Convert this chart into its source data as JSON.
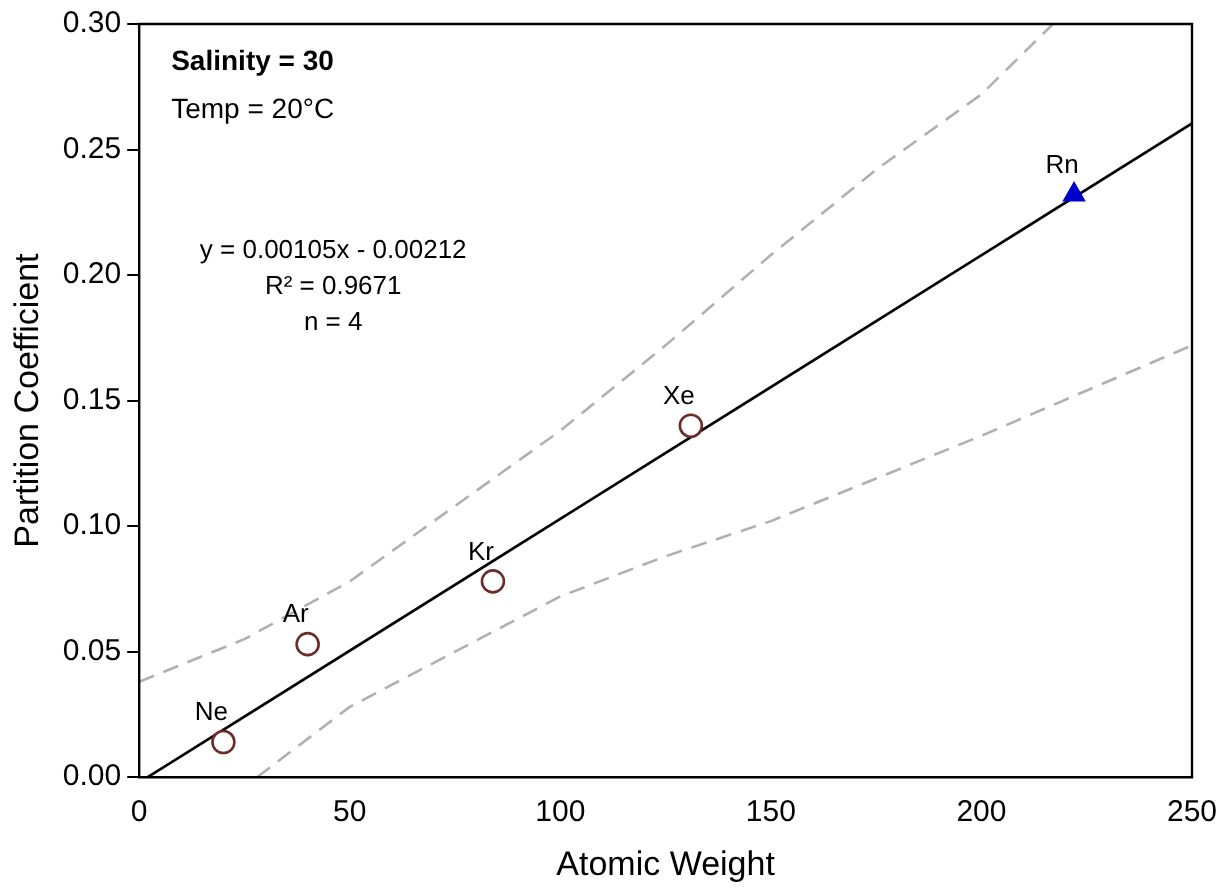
{
  "chart_data": {
    "type": "scatter",
    "xlabel": "Atomic Weight",
    "ylabel": "Partition Coefficient",
    "xlim": [
      0,
      250
    ],
    "xticks": [
      0,
      50,
      100,
      150,
      200,
      250
    ],
    "ylim": [
      0,
      0.3
    ],
    "yticks": [
      {
        "value": 0,
        "label": "0.00"
      },
      {
        "value": 0.05,
        "label": "0.05"
      },
      {
        "value": 0.1,
        "label": "0.10"
      },
      {
        "value": 0.15,
        "label": "0.15"
      },
      {
        "value": 0.2,
        "label": "0.20"
      },
      {
        "value": 0.25,
        "label": "0.25"
      },
      {
        "value": 0.3,
        "label": "0.30"
      }
    ],
    "grid": false,
    "legend": false,
    "series": [
      {
        "type": "line",
        "color": "#b0b0b0",
        "line_style": "dashed",
        "marker": "none",
        "x": [
          0,
          25,
          50,
          75,
          100,
          125,
          150,
          175,
          200,
          217
        ],
        "values": [
          0.038,
          0.055,
          0.078,
          0.108,
          0.138,
          0.172,
          0.208,
          0.242,
          0.272,
          0.3
        ]
      },
      {
        "type": "line",
        "color": "#b0b0b0",
        "line_style": "dashed",
        "marker": "none",
        "x": [
          28,
          50,
          75,
          100,
          125,
          150,
          175,
          200,
          225,
          250
        ],
        "values": [
          0,
          0.028,
          0.05,
          0.072,
          0.088,
          0.102,
          0.119,
          0.136,
          0.154,
          0.172
        ]
      },
      {
        "type": "line",
        "color": "#000000",
        "line_style": "solid",
        "marker": "none",
        "x": [
          2,
          250
        ],
        "values": [
          0,
          0.2604
        ]
      },
      {
        "color": "#6b2b2b",
        "marker": "circle",
        "x": [
          20,
          40,
          84,
          131
        ],
        "values": [
          0.014,
          0.053,
          0.078,
          0.14
        ]
      },
      {
        "color": "#0000cc",
        "marker": "triangle",
        "x": [
          222
        ],
        "values": [
          0.232
        ]
      }
    ],
    "annotations": [
      "Salinity = 30",
      "Temp = 20°C",
      "y = 0.00105x - 0.00212",
      "R² = 0.9671",
      "n = 4",
      {
        "text": "Ne",
        "x": 20,
        "y": 0.014
      },
      {
        "text": "Ar",
        "x": 40,
        "y": 0.053
      },
      {
        "text": "Kr",
        "x": 84,
        "y": 0.078
      },
      {
        "text": "Xe",
        "x": 131,
        "y": 0.14
      },
      {
        "text": "Rn",
        "x": 222,
        "y": 0.232
      }
    ]
  }
}
